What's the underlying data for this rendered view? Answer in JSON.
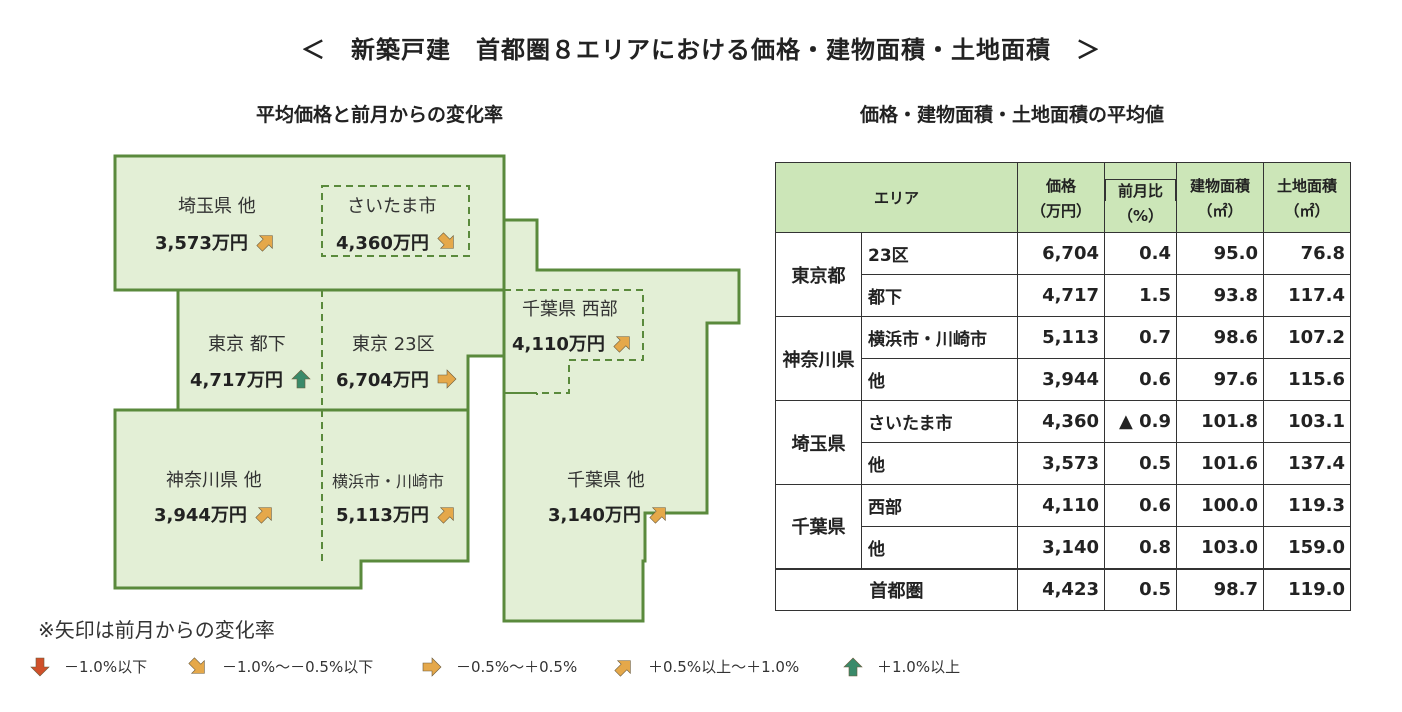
{
  "title": "＜　新築戸建　首都圏８エリアにおける価格・建物面積・土地面積　＞",
  "map": {
    "subtitle": "平均価格と前月からの変化率",
    "areas": [
      {
        "key": "saitama_other",
        "label": "埼玉県 他",
        "price": "3,573万円",
        "arrow": "up-right"
      },
      {
        "key": "saitama_city",
        "label": "さいたま市",
        "price": "4,360万円",
        "arrow": "down-right"
      },
      {
        "key": "tokyo_toka",
        "label": "東京 都下",
        "price": "4,717万円",
        "arrow": "up"
      },
      {
        "key": "tokyo_23",
        "label": "東京 23区",
        "price": "6,704万円",
        "arrow": "right"
      },
      {
        "key": "chiba_west",
        "label": "千葉県 西部",
        "price": "4,110万円",
        "arrow": "up-right"
      },
      {
        "key": "kanagawa_other",
        "label": "神奈川県 他",
        "price": "3,944万円",
        "arrow": "up-right"
      },
      {
        "key": "yokohama_kawasaki",
        "label": "横浜市・川崎市",
        "price": "5,113万円",
        "arrow": "up-right"
      },
      {
        "key": "chiba_other",
        "label": "千葉県 他",
        "price": "3,140万円",
        "arrow": "up-right"
      }
    ]
  },
  "table": {
    "subtitle": "価格・建物面積・土地面積の平均値",
    "headers": {
      "area": "エリア",
      "price": "価格",
      "price_unit": "（万円）",
      "change": "前月比",
      "change_unit": "（%）",
      "building": "建物面積",
      "building_unit": "（㎡）",
      "land": "土地面積",
      "land_unit": "（㎡）"
    },
    "groups": [
      {
        "pref": "東京都",
        "rows": [
          {
            "sub": "23区",
            "price": "6,704",
            "change": "0.4",
            "building": "95.0",
            "land": "76.8"
          },
          {
            "sub": "都下",
            "price": "4,717",
            "change": "1.5",
            "building": "93.8",
            "land": "117.4"
          }
        ]
      },
      {
        "pref": "神奈川県",
        "rows": [
          {
            "sub": "横浜市・川崎市",
            "price": "5,113",
            "change": "0.7",
            "building": "98.6",
            "land": "107.2"
          },
          {
            "sub": "他",
            "price": "3,944",
            "change": "0.6",
            "building": "97.6",
            "land": "115.6"
          }
        ]
      },
      {
        "pref": "埼玉県",
        "rows": [
          {
            "sub": "さいたま市",
            "price": "4,360",
            "change": "▲ 0.9",
            "building": "101.8",
            "land": "103.1"
          },
          {
            "sub": "他",
            "price": "3,573",
            "change": "0.5",
            "building": "101.6",
            "land": "137.4"
          }
        ]
      },
      {
        "pref": "千葉県",
        "rows": [
          {
            "sub": "西部",
            "price": "4,110",
            "change": "0.6",
            "building": "100.0",
            "land": "119.3"
          },
          {
            "sub": "他",
            "price": "3,140",
            "change": "0.8",
            "building": "103.0",
            "land": "159.0"
          }
        ]
      }
    ],
    "total": {
      "label": "首都圏",
      "price": "4,423",
      "change": "0.5",
      "building": "98.7",
      "land": "119.0"
    }
  },
  "note": "※矢印は前月からの変化率",
  "legend": [
    {
      "arrow": "down",
      "label": "－1.0%以下"
    },
    {
      "arrow": "down-right",
      "label": "－1.0%～－0.5%以下"
    },
    {
      "arrow": "right",
      "label": "－0.5%～＋0.5%"
    },
    {
      "arrow": "up-right",
      "label": "＋0.5%以上～＋1.0%"
    },
    {
      "arrow": "up",
      "label": "＋1.0%以上"
    }
  ],
  "colors": {
    "map_fill": "#e3efd6",
    "map_stroke": "#5a8a3c",
    "header_fill": "#cce6b8",
    "arrow_orange": "#e5a84a",
    "arrow_red": "#d0502a",
    "arrow_green": "#3a8a6a"
  }
}
